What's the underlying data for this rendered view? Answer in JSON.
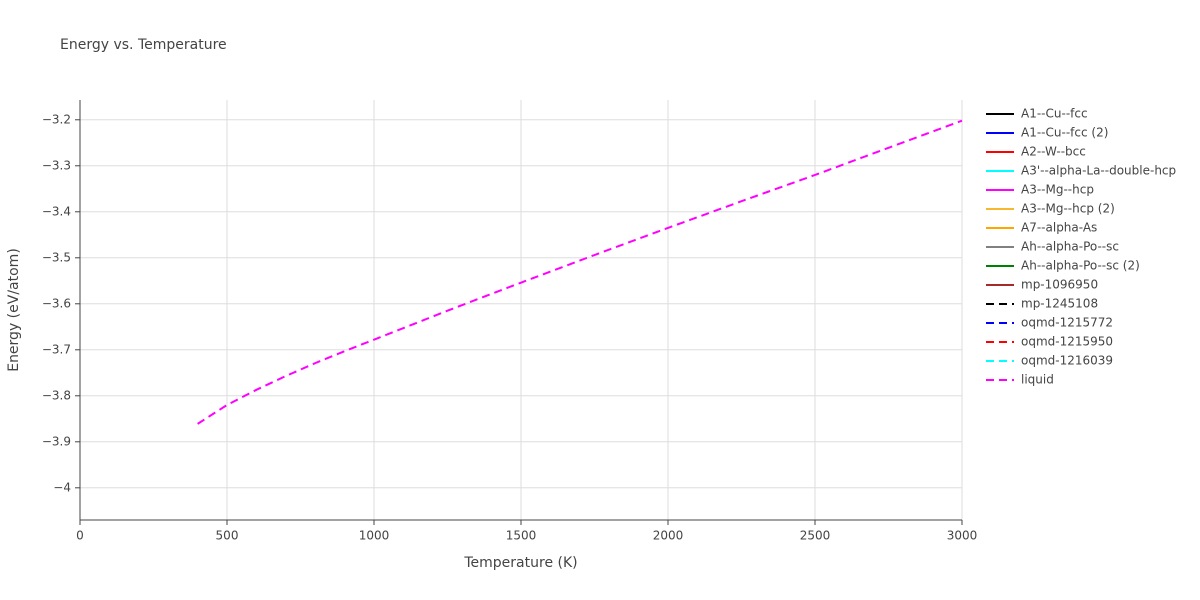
{
  "chart_data": {
    "type": "line",
    "title": "Energy vs. Temperature",
    "x_label": "Temperature (K)",
    "y_label": "Energy (eV/atom)",
    "xlim": [
      0,
      3000
    ],
    "xticks": [
      0,
      500,
      1000,
      1500,
      2000,
      2500,
      3000
    ],
    "ylim": [
      -4.07,
      -3.157
    ],
    "yticks": [
      {
        "value": -4,
        "label": "−4"
      },
      {
        "value": -3.9,
        "label": "−3.9"
      },
      {
        "value": -3.8,
        "label": "−3.8"
      },
      {
        "value": -3.7,
        "label": "−3.7"
      },
      {
        "value": -3.6,
        "label": "−3.6"
      },
      {
        "value": -3.5,
        "label": "−3.5"
      },
      {
        "value": -3.4,
        "label": "−3.4"
      },
      {
        "value": -3.3,
        "label": "−3.3"
      },
      {
        "value": -3.2,
        "label": "−3.2"
      }
    ],
    "grid": true,
    "legend": "right",
    "series": [
      {
        "name": "A1--Cu--fcc",
        "color": "#000000",
        "dash": "solid"
      },
      {
        "name": "A1--Cu--fcc (2)",
        "color": "#0000ff",
        "dash": "solid"
      },
      {
        "name": "A2--W--bcc",
        "color": "#ff0000",
        "dash": "solid"
      },
      {
        "name": "A3'--alpha-La--double-hcp",
        "color": "#00ffff",
        "dash": "solid"
      },
      {
        "name": "A3--Mg--hcp",
        "color": "#ff00ff",
        "dash": "solid"
      },
      {
        "name": "A3--Mg--hcp (2)",
        "color": "#f5b82e",
        "dash": "solid"
      },
      {
        "name": "A7--alpha-As",
        "color": "#ffa500",
        "dash": "solid"
      },
      {
        "name": "Ah--alpha-Po--sc",
        "color": "#808080",
        "dash": "solid"
      },
      {
        "name": "Ah--alpha-Po--sc (2)",
        "color": "#008000",
        "dash": "solid"
      },
      {
        "name": "mp-1096950",
        "color": "#a52a2a",
        "dash": "solid"
      },
      {
        "name": "mp-1245108",
        "color": "#000000",
        "dash": "dash"
      },
      {
        "name": "oqmd-1215772",
        "color": "#0000ff",
        "dash": "dash"
      },
      {
        "name": "oqmd-1215950",
        "color": "#ff0000",
        "dash": "dash"
      },
      {
        "name": "oqmd-1216039",
        "color": "#00ffff",
        "dash": "dash"
      },
      {
        "name": "liquid",
        "color": "#ff00ff",
        "dash": "dash",
        "x": [
          400,
          500,
          600,
          700,
          800,
          900,
          1000,
          1250,
          1500,
          1750,
          2000,
          2250,
          2500,
          2750,
          3000
        ],
        "values": [
          -3.861,
          -3.82,
          -3.787,
          -3.757,
          -3.729,
          -3.703,
          -3.678,
          -3.615,
          -3.554,
          -3.494,
          -3.435,
          -3.377,
          -3.32,
          -3.261,
          -3.202
        ]
      }
    ]
  }
}
